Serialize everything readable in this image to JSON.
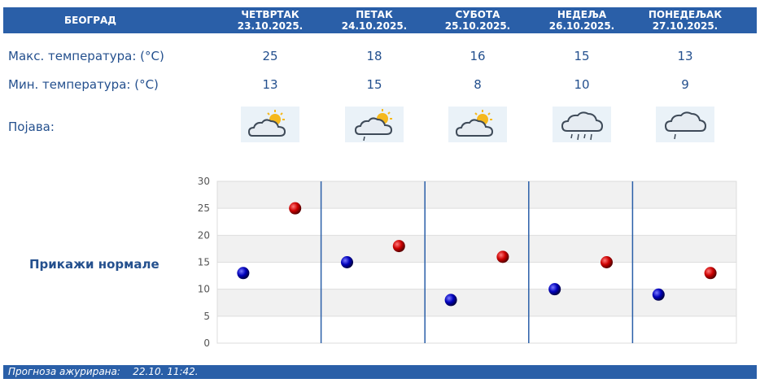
{
  "city": "БЕОГРАД",
  "days": [
    {
      "name": "ЧЕТВРТАК",
      "date": "23.10.2025.",
      "max": "25",
      "min": "13",
      "icon": "partly-cloudy-icon"
    },
    {
      "name": "ПЕТАК",
      "date": "24.10.2025.",
      "max": "18",
      "min": "15",
      "icon": "partly-cloudy-drizzle-icon"
    },
    {
      "name": "СУБОТА",
      "date": "25.10.2025.",
      "max": "16",
      "min": "8",
      "icon": "partly-cloudy-icon"
    },
    {
      "name": "НЕДЕЉА",
      "date": "26.10.2025.",
      "max": "15",
      "min": "10",
      "icon": "rain-cloud-icon"
    },
    {
      "name": "ПОНЕДЕЉАК",
      "date": "27.10.2025.",
      "max": "13",
      "min": "9",
      "icon": "drizzle-cloud-icon"
    }
  ],
  "labels": {
    "max_temp": "Макс. температура: (°C)",
    "min_temp": "Мин. температура: (°C)",
    "phenomenon": "Појава:",
    "show_normals": "Прикажи нормале"
  },
  "footer": {
    "label": "Прогноза ажурирана:",
    "value": "22.10. 11:42."
  },
  "colors": {
    "header_bg": "#2a5fa8",
    "text": "#24508e",
    "max_marker": "#cc0000",
    "min_marker": "#0000bb"
  },
  "chart_data": {
    "type": "scatter",
    "categories": [
      "23.10.2025.",
      "24.10.2025.",
      "25.10.2025.",
      "26.10.2025.",
      "27.10.2025."
    ],
    "y_ticks": [
      "0",
      "5",
      "10",
      "15",
      "20",
      "25",
      "30"
    ],
    "ylim": [
      0,
      30
    ],
    "series": [
      {
        "values": [
          13,
          15,
          8,
          10,
          9
        ]
      },
      {
        "values": [
          25,
          18,
          16,
          15,
          13
        ]
      }
    ],
    "grid": true
  }
}
